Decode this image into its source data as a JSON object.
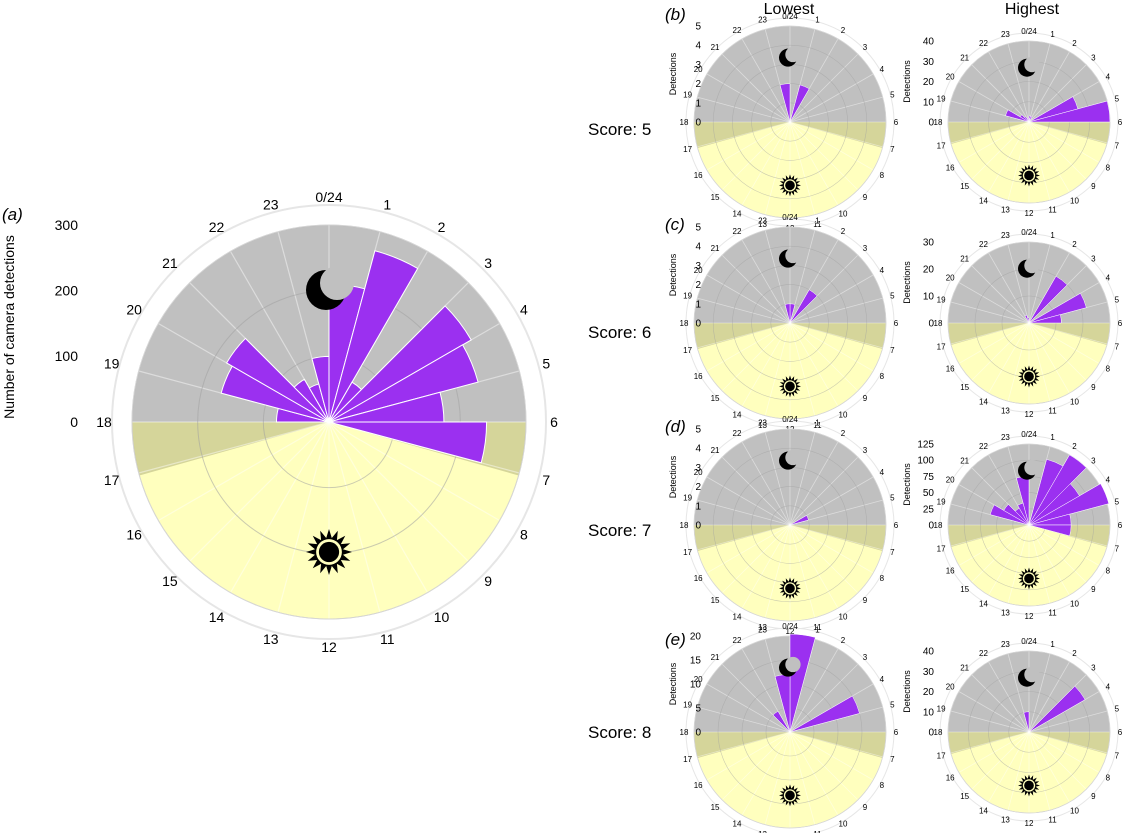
{
  "figure": {
    "col_headers": [
      "Lowest",
      "Highest"
    ],
    "row_labels": [
      "Score: 5",
      "Score: 6",
      "Score: 7",
      "Score: 8"
    ],
    "panel_letters": [
      "(a)",
      "(b)",
      "(c)",
      "(d)",
      "(e)"
    ],
    "main_ylabel": "Number of camera detections",
    "small_ylabel": "Detections",
    "hour_labels": [
      "0/24",
      "1",
      "2",
      "3",
      "4",
      "5",
      "6",
      "7",
      "8",
      "9",
      "10",
      "11",
      "12",
      "13",
      "14",
      "15",
      "16",
      "17",
      "18",
      "19",
      "20",
      "21",
      "22",
      "23"
    ],
    "colors": {
      "bar": "#9b30f0",
      "night": "#c0c0c0",
      "day": "#ffffbe",
      "twilight": "#d5d59a"
    },
    "icons": {
      "night": "moon-icon",
      "day": "sun-icon"
    }
  },
  "chart_data": [
    {
      "id": "a",
      "type": "bar",
      "polar": true,
      "ylabel": "Number of camera detections",
      "ylim": [
        0,
        300
      ],
      "yticks": [
        0,
        100,
        200,
        300
      ],
      "categories": [
        "0",
        "1",
        "2",
        "3",
        "4",
        "5",
        "6",
        "7",
        "8",
        "9",
        "10",
        "11",
        "12",
        "13",
        "14",
        "15",
        "16",
        "17",
        "18",
        "19",
        "20",
        "21",
        "22",
        "23"
      ],
      "values": [
        210,
        270,
        70,
        250,
        235,
        175,
        240,
        0,
        0,
        0,
        0,
        0,
        0,
        0,
        0,
        0,
        0,
        0,
        80,
        170,
        180,
        75,
        60,
        100
      ]
    },
    {
      "id": "b-lowest",
      "type": "bar",
      "polar": true,
      "ylabel": "Detections",
      "ylim": [
        0,
        5
      ],
      "yticks": [
        0,
        1,
        2,
        3,
        4,
        5
      ],
      "values": [
        0,
        2,
        0,
        0,
        0,
        0,
        0,
        0,
        0,
        0,
        0,
        0,
        0,
        0,
        0,
        0,
        0,
        0,
        0,
        0,
        0,
        0,
        0,
        2
      ]
    },
    {
      "id": "b-highest",
      "type": "bar",
      "polar": true,
      "ylabel": "Detections",
      "ylim": [
        0,
        40
      ],
      "yticks": [
        0,
        10,
        20,
        30,
        40
      ],
      "values": [
        3,
        3,
        0,
        0,
        25,
        40,
        0,
        0,
        0,
        0,
        0,
        0,
        0,
        0,
        0,
        0,
        0,
        0,
        0,
        12,
        5,
        3,
        0,
        2
      ]
    },
    {
      "id": "c-lowest",
      "type": "bar",
      "polar": true,
      "ylabel": "Detections",
      "ylim": [
        0,
        5
      ],
      "yticks": [
        0,
        1,
        2,
        3,
        4,
        5
      ],
      "values": [
        1,
        0,
        2,
        0,
        0,
        0,
        0,
        0,
        0,
        0,
        0,
        0,
        0,
        0,
        0,
        0,
        0,
        0,
        0,
        0,
        0,
        0,
        0,
        1
      ]
    },
    {
      "id": "c-highest",
      "type": "bar",
      "polar": true,
      "ylabel": "Detections",
      "ylim": [
        0,
        30
      ],
      "yticks": [
        0,
        10,
        20,
        30
      ],
      "values": [
        0,
        0,
        20,
        0,
        22,
        12,
        0,
        0,
        0,
        0,
        0,
        0,
        0,
        0,
        0,
        0,
        0,
        0,
        0,
        0,
        0,
        0,
        3,
        2
      ]
    },
    {
      "id": "d-lowest",
      "type": "bar",
      "polar": true,
      "ylabel": "Detections",
      "ylim": [
        0,
        5
      ],
      "yticks": [
        0,
        1,
        2,
        3,
        4,
        5
      ],
      "values": [
        0,
        0,
        0,
        0,
        1,
        0,
        0,
        0,
        0,
        0,
        0,
        0,
        0,
        0,
        0,
        0,
        0,
        0,
        0,
        0,
        0,
        0,
        0,
        0
      ]
    },
    {
      "id": "d-highest",
      "type": "bar",
      "polar": true,
      "ylabel": "Detections",
      "ylim": [
        0,
        125
      ],
      "yticks": [
        0,
        25,
        50,
        75,
        100,
        125
      ],
      "values": [
        0,
        105,
        125,
        90,
        130,
        65,
        65,
        0,
        0,
        0,
        0,
        0,
        0,
        0,
        0,
        0,
        0,
        0,
        0,
        62,
        45,
        30,
        35,
        75
      ]
    },
    {
      "id": "e-lowest",
      "type": "bar",
      "polar": true,
      "ylabel": "Detections",
      "ylim": [
        0,
        20
      ],
      "yticks": [
        0,
        5,
        10,
        15,
        20
      ],
      "values": [
        21,
        0,
        0,
        0,
        15,
        0,
        0,
        0,
        0,
        0,
        0,
        0,
        0,
        0,
        0,
        0,
        0,
        0,
        0,
        0,
        0,
        5,
        0,
        12
      ]
    },
    {
      "id": "e-highest",
      "type": "bar",
      "polar": true,
      "ylabel": "Detections",
      "ylim": [
        0,
        40
      ],
      "yticks": [
        0,
        10,
        20,
        30,
        40
      ],
      "values": [
        0,
        0,
        0,
        32,
        0,
        0,
        0,
        0,
        0,
        0,
        0,
        0,
        0,
        0,
        0,
        0,
        0,
        0,
        0,
        0,
        0,
        0,
        0,
        10
      ]
    }
  ]
}
